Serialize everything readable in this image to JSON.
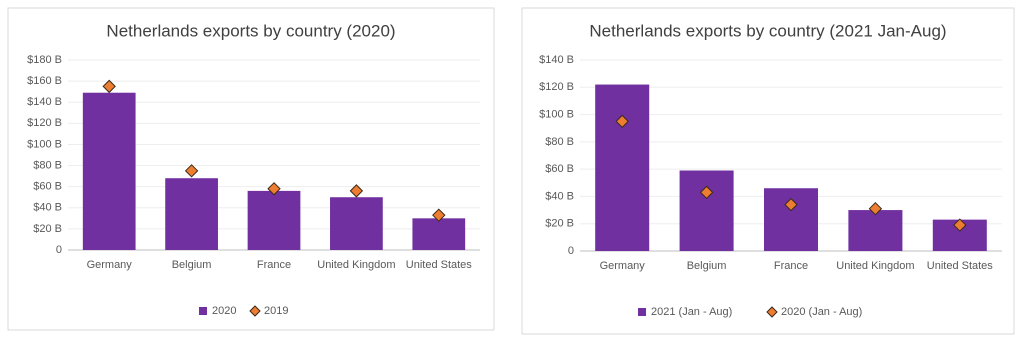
{
  "chart_data": [
    {
      "type": "bar",
      "title": "Netherlands exports by country (2020)",
      "categories": [
        "Germany",
        "Belgium",
        "France",
        "United Kingdom",
        "United States"
      ],
      "series": [
        {
          "name": "2020",
          "style": "bar",
          "color": "#7030a0",
          "values": [
            149,
            68,
            56,
            50,
            30
          ]
        },
        {
          "name": "2019",
          "style": "diamond",
          "color": "#ed7d31",
          "values": [
            155,
            75,
            58,
            56,
            33
          ]
        }
      ],
      "ylim": [
        0,
        180
      ],
      "yticks": [
        0,
        {
          "value": 20,
          "label": "$20 B"
        },
        {
          "value": 40,
          "label": "$40 B"
        },
        {
          "value": 60,
          "label": "$60 B"
        },
        {
          "value": 80,
          "label": "$80 B"
        },
        {
          "value": 100,
          "label": "$100 B"
        },
        {
          "value": 120,
          "label": "$120 B"
        },
        {
          "value": 140,
          "label": "$140 B"
        },
        {
          "value": 160,
          "label": "$160 B"
        },
        {
          "value": 180,
          "label": "$180 B"
        }
      ],
      "grid": true,
      "legend": "bottom"
    },
    {
      "type": "bar",
      "title": "Netherlands exports by country (2021 Jan-Aug)",
      "categories": [
        "Germany",
        "Belgium",
        "France",
        "United Kingdom",
        "United States"
      ],
      "series": [
        {
          "name": "2021 (Jan - Aug)",
          "style": "bar",
          "color": "#7030a0",
          "values": [
            122,
            59,
            46,
            30,
            23
          ]
        },
        {
          "name": "2020 (Jan - Aug)",
          "style": "diamond",
          "color": "#ed7d31",
          "values": [
            95,
            43,
            34,
            31,
            19
          ]
        }
      ],
      "ylim": [
        0,
        140
      ],
      "yticks": [
        0,
        {
          "value": 20,
          "label": "$20 B"
        },
        {
          "value": 40,
          "label": "$40 B"
        },
        {
          "value": 60,
          "label": "$60 B"
        },
        {
          "value": 80,
          "label": "$80 B"
        },
        {
          "value": 100,
          "label": "$100 B"
        },
        {
          "value": 120,
          "label": "$120 B"
        },
        {
          "value": 140,
          "label": "$140 B"
        }
      ],
      "grid": true,
      "legend": "bottom"
    }
  ]
}
